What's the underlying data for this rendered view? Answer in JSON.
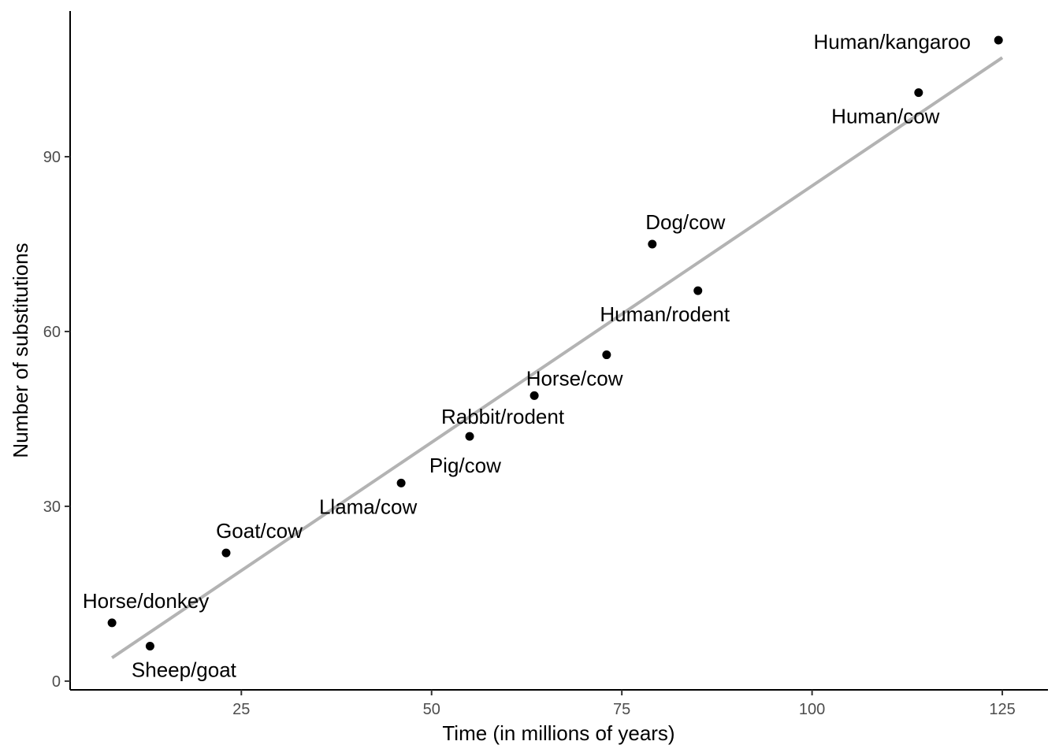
{
  "chart_data": {
    "type": "scatter",
    "title": "",
    "xlabel": "Time (in millions of years)",
    "ylabel": "Number of substitutions",
    "xlim": [
      2.5,
      131
    ],
    "ylim": [
      -1.5,
      115
    ],
    "xticks": [
      25,
      50,
      75,
      100,
      125
    ],
    "yticks": [
      0,
      30,
      60,
      90
    ],
    "grid": false,
    "legend": "none",
    "colors": {
      "points": "#000000",
      "fit_line": "#b3b3b3",
      "axis": "#000000",
      "tick_text": "#4d4d4d"
    },
    "points": [
      {
        "x": 8,
        "y": 10,
        "label": "Horse/donkey"
      },
      {
        "x": 13,
        "y": 6,
        "label": "Sheep/goat"
      },
      {
        "x": 23,
        "y": 22,
        "label": "Goat/cow"
      },
      {
        "x": 46,
        "y": 34,
        "label": "Llama/cow"
      },
      {
        "x": 55,
        "y": 42,
        "label": "Rabbit/rodent"
      },
      {
        "x": 63.5,
        "y": 49,
        "label": "Horse/cow"
      },
      {
        "x": 73,
        "y": 56,
        "label": ""
      },
      {
        "x": 79,
        "y": 75,
        "label": "Dog/cow"
      },
      {
        "x": 85,
        "y": 67,
        "label": "Human/rodent"
      },
      {
        "x": 114,
        "y": 101,
        "label": "Human/cow"
      },
      {
        "x": 124.5,
        "y": 110,
        "label": "Human/kangaroo"
      }
    ],
    "standalone_labels": [
      {
        "x": 54,
        "y": 37,
        "label": "Pig/cow"
      }
    ],
    "fit_line": {
      "x1": 8,
      "y1": 4,
      "x2": 125,
      "y2": 107
    }
  }
}
